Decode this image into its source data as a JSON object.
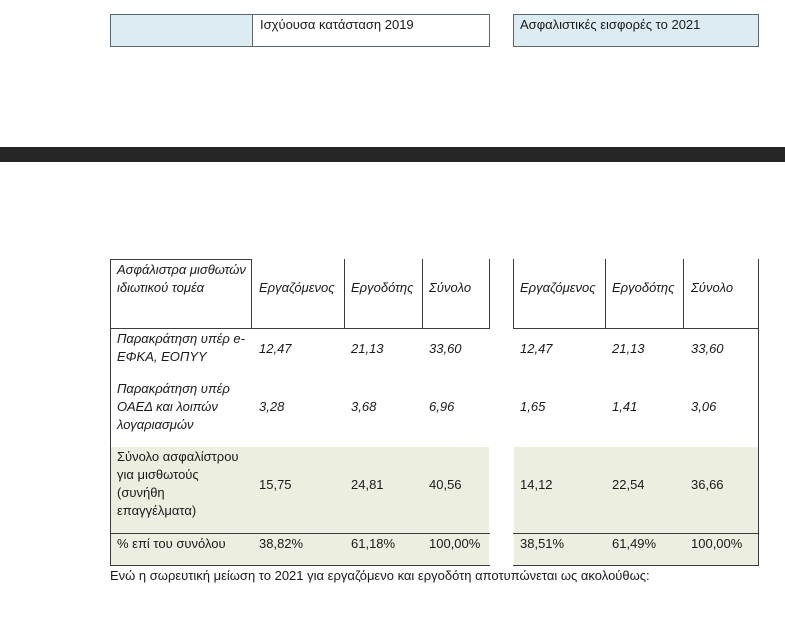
{
  "top_header": {
    "left_label": "Ισχύουσα κατάσταση 2019",
    "right_label": "Ασφαλιστικές εισφορές το 2021",
    "left_fill": "#dcecf2",
    "right_fill": "#dcecf2"
  },
  "table": {
    "header": {
      "row_label": "Ασφάλιστρα μισθωτών ιδιωτικού τομέα",
      "left": [
        "Εργαζόμενος",
        "Εργοδότης",
        "Σύνολο"
      ],
      "right": [
        "Εργαζόμενος",
        "Εργοδότης",
        "Σύνολο"
      ]
    },
    "rows": [
      {
        "label": "Παρακράτηση υπέρ e-ΕΦΚΑ, ΕΟΠΥΥ",
        "left": [
          "12,47",
          "21,13",
          "33,60"
        ],
        "right": [
          "12,47",
          "21,13",
          "33,60"
        ]
      },
      {
        "label": "Παρακράτηση υπέρ ΟΑΕΔ και λοιπών λογαριασμών",
        "left": [
          "3,28",
          "3,68",
          "6,96"
        ],
        "right": [
          "1,65",
          "1,41",
          "3,06"
        ]
      },
      {
        "label": "Σύνολο ασφαλίστρου για μισθωτούς (συνήθη επαγγέλματα)",
        "left": [
          "15,75",
          "24,81",
          "40,56"
        ],
        "right": [
          "14,12",
          "22,54",
          "36,66"
        ]
      },
      {
        "label": "% επί του συνόλου",
        "left": [
          "38,82%",
          "61,18%",
          "100,00%"
        ],
        "right": [
          "38,51%",
          "61,49%",
          "100,00%"
        ]
      }
    ],
    "shade_color": "#ecefdf"
  },
  "footer": {
    "text": "Ενώ η σωρευτική μείωση το 2021 για εργαζόμενο και εργοδότη αποτυπώνεται ως ακολούθως:"
  }
}
